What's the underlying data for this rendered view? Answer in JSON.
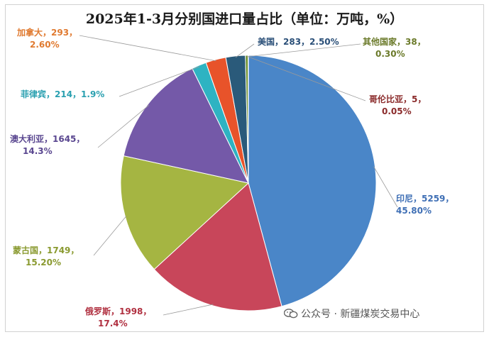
{
  "chart_data": {
    "type": "pie",
    "title": "2025年1-3月分别国进口量占比（单位：万吨，%）",
    "slices": [
      {
        "name": "印尼",
        "value": 5259,
        "percent_label": "45.80%",
        "color": "#4a86c8"
      },
      {
        "name": "俄罗斯",
        "value": 1998,
        "percent_label": "17.4%",
        "color": "#c8465a"
      },
      {
        "name": "蒙古国",
        "value": 1749,
        "percent_label": "15.20%",
        "color": "#a5b542"
      },
      {
        "name": "澳大利亚",
        "value": 1645,
        "percent_label": "14.3%",
        "color": "#7459a8"
      },
      {
        "name": "菲律宾",
        "value": 214,
        "percent_label": "1.9%",
        "color": "#2eb3c2"
      },
      {
        "name": "加拿大",
        "value": 293,
        "percent_label": "2.60%",
        "color": "#e8532a"
      },
      {
        "name": "美国",
        "value": 283,
        "percent_label": "2.50%",
        "color": "#2a5a7a"
      },
      {
        "name": "其他国家",
        "value": 38,
        "percent_label": "0.30%",
        "color": "#6b8f2a"
      },
      {
        "name": "哥伦比亚",
        "value": 5,
        "percent_label": "0.05%",
        "color": "#8a2a2a"
      }
    ],
    "label_colors": {
      "印尼": "#3f6fb5",
      "俄罗斯": "#b03040",
      "蒙古国": "#8a9a30",
      "澳大利亚": "#5a4790",
      "菲律宾": "#2aa0b0",
      "加拿大": "#e07a30",
      "美国": "#2a4f78",
      "其他国家": "#6b7a2a",
      "哥伦比亚": "#8a2a2a"
    }
  },
  "watermark": {
    "text": "公众号 · 新疆煤炭交易中心"
  }
}
